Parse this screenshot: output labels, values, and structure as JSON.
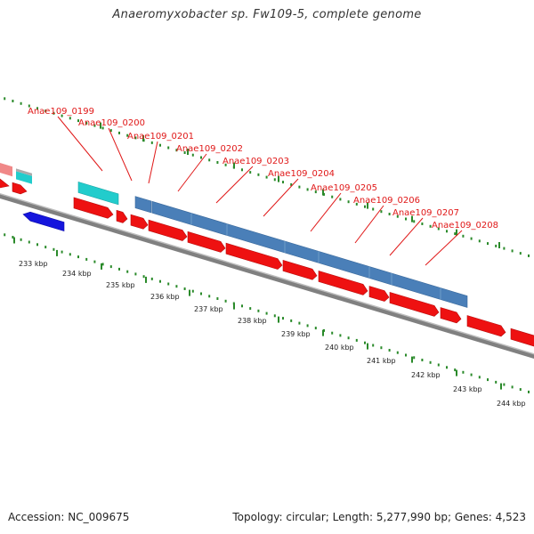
{
  "title": "Anaeromyxobacter sp. Fw109-5, complete genome",
  "footer": {
    "accession": "Accession: NC_009675",
    "summary": "Topology: circular; Length: 5,277,990 bp; Genes: 4,523"
  },
  "gene_labels": [
    "Anae109_0199",
    "Anae109_0200",
    "Anae109_0201",
    "Anae109_0202",
    "Anae109_0203",
    "Anae109_0204",
    "Anae109_0205",
    "Anae109_0206",
    "Anae109_0207",
    "Anae109_0208"
  ],
  "ticks": [
    "233 kbp",
    "234 kbp",
    "235 kbp",
    "236 kbp",
    "237 kbp",
    "238 kbp",
    "239 kbp",
    "240 kbp",
    "241 kbp",
    "242 kbp",
    "243 kbp",
    "244 kbp"
  ],
  "colors": {
    "label": "#e01818",
    "forward_gene": "#ee1111",
    "operon": "#4a7fb8",
    "reverse_gene": "#1515dd",
    "rna": "#22cccc",
    "backbone": "#808080",
    "tick": "#2a8a2a"
  }
}
